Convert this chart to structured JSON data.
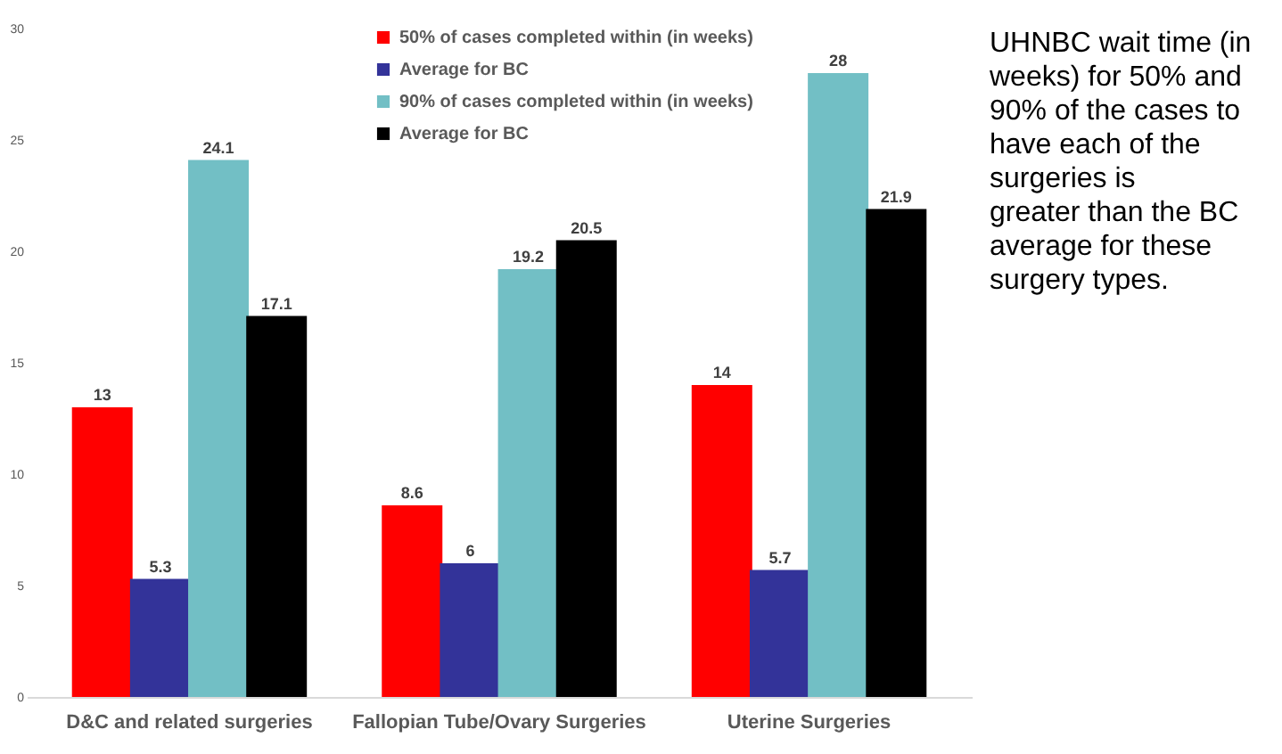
{
  "chart_data": {
    "type": "bar",
    "categories": [
      "D&C and related surgeries",
      "Fallopian Tube/Ovary Surgeries",
      "Uterine Surgeries"
    ],
    "series": [
      {
        "name": "50% of cases completed within (in weeks)",
        "color": "#ff0000",
        "values": [
          13,
          8.6,
          14
        ]
      },
      {
        "name": "Average for BC",
        "color": "#333399",
        "values": [
          5.3,
          6,
          5.7
        ]
      },
      {
        "name": "90% of cases completed within (in weeks)",
        "color": "#72bfc5",
        "values": [
          24.1,
          19.2,
          28
        ]
      },
      {
        "name": "Average for BC",
        "color": "#000000",
        "values": [
          17.1,
          20.5,
          21.9
        ]
      }
    ],
    "ylim": [
      0,
      30
    ],
    "yticks": [
      0,
      5,
      10,
      15,
      20,
      25,
      30
    ],
    "grid": false,
    "legend": "top",
    "data_labels": true,
    "annotations": [
      "UHNBC wait time (in weeks) for 50% and 90% of the cases to have each of the surgeries is greater than the BC average for these surgery types."
    ]
  }
}
